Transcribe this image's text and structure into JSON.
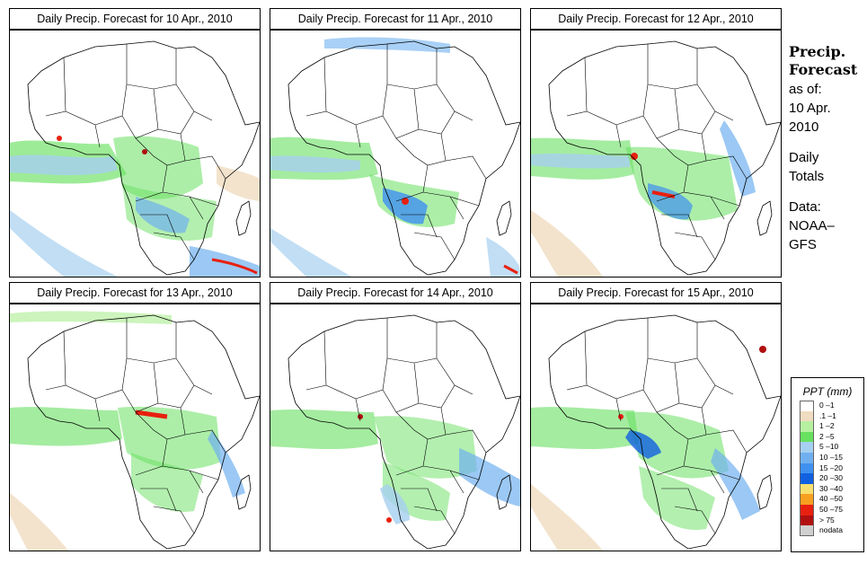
{
  "panels": [
    {
      "title": "Daily Precip. Forecast for  10 Apr., 2010"
    },
    {
      "title": "Daily Precip. Forecast for  11 Apr., 2010"
    },
    {
      "title": "Daily Precip. Forecast for  12 Apr., 2010"
    },
    {
      "title": "Daily Precip. Forecast for  13 Apr., 2010"
    },
    {
      "title": "Daily Precip. Forecast for  14 Apr., 2010"
    },
    {
      "title": "Daily Precip. Forecast for  15 Apr., 2010"
    }
  ],
  "side": {
    "title_line1": "Precip.",
    "title_line2": "Forecast",
    "asof_label": "as of:",
    "date_line1": "10 Apr.",
    "date_line2": "2010",
    "totals_line1": "Daily",
    "totals_line2": "Totals",
    "data_line1": "Data:",
    "data_line2": "NOAA–",
    "data_line3": "GFS"
  },
  "legend": {
    "title": "PPT (mm)",
    "items": [
      {
        "label": "0 –1",
        "color": "#ffffff"
      },
      {
        "label": ".1 –1",
        "color": "#f0dcc0"
      },
      {
        "label": "1 –2",
        "color": "#b6f0a0"
      },
      {
        "label": "2 –5",
        "color": "#68e060"
      },
      {
        "label": "5 –10",
        "color": "#a6d0f0"
      },
      {
        "label": "10 –15",
        "color": "#70b0f0"
      },
      {
        "label": "15 –20",
        "color": "#4090f0"
      },
      {
        "label": "20 –30",
        "color": "#1060e0"
      },
      {
        "label": "30 –40",
        "color": "#f8e070"
      },
      {
        "label": "40 –50",
        "color": "#f8a020"
      },
      {
        "label": "50 –75",
        "color": "#e82010"
      },
      {
        "label": "> 75",
        "color": "#b01010"
      },
      {
        "label": "nodata",
        "color": "#d0d0d0"
      }
    ]
  }
}
